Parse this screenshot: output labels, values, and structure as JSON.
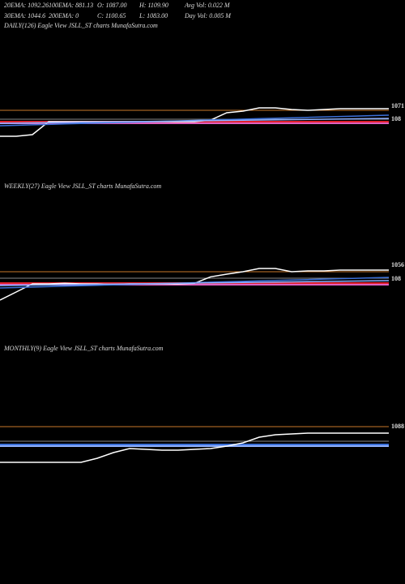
{
  "header": {
    "row1": [
      "20EMA: 1092.26",
      "100EMA: 881.13",
      "O: 1087.00",
      "H: 1109.90",
      "Avg Vol: 0.022  M"
    ],
    "row2": [
      "30EMA: 1044.6",
      "200EMA: 0",
      "C: 1100.65",
      "L: 1083.00",
      "Day Vol: 0.005  M"
    ]
  },
  "chart_data": [
    {
      "type": "line",
      "title": "DAILY(126) Eagle   View  JSLL_ST charts MunafaSutra.com",
      "ylim": [
        970,
        1120
      ],
      "categories": [
        null,
        null,
        null,
        null,
        null,
        null,
        null,
        null,
        null,
        null,
        null,
        null,
        null,
        null,
        null,
        null,
        null,
        null,
        null,
        null,
        null,
        null,
        null,
        null,
        null
      ],
      "series": [
        {
          "color": "#ffffff",
          "values": [
            1018,
            1018,
            1021,
            1045,
            1045,
            1045,
            1045,
            1045,
            1045,
            1045,
            1045,
            1045,
            1045,
            1048,
            1061.5,
            1064.5,
            1070.5,
            1070.5,
            1067.5,
            1066,
            1067.5,
            1069,
            1069,
            1069,
            1069
          ]
        },
        {
          "color": "#3a6fd8",
          "values": [
            1037.5,
            1038.3,
            1039.1,
            1039.9,
            1040.8,
            1041.6,
            1042.4,
            1043.2,
            1044,
            1044.8,
            1045.6,
            1046.4,
            1047.3,
            1048.1,
            1048.9,
            1049.7,
            1050.5,
            1051.3,
            1052.1,
            1052.9,
            1053.8,
            1054.6,
            1055.4,
            1056.2,
            1057
          ]
        },
        {
          "color": "#8fb0ff",
          "values": [
            1042,
            1042.4,
            1042.8,
            1043.1,
            1043.5,
            1043.9,
            1044.3,
            1044.6,
            1045,
            1045.4,
            1045.8,
            1046.1,
            1046.5,
            1046.9,
            1047.3,
            1047.6,
            1048,
            1048.4,
            1048.8,
            1049.1,
            1049.5,
            1049.9,
            1050.3,
            1050.6,
            1051
          ]
        }
      ],
      "hlines": [
        {
          "color": "#c8782a",
          "value": 1066
        },
        {
          "color": "#888888",
          "value": 1049.5
        },
        {
          "color": "#e0202a",
          "value": 1045
        },
        {
          "color": "#e060c0",
          "value": 1042
        }
      ],
      "annotations": [
        "1071",
        "108"
      ]
    },
    {
      "type": "line",
      "title": "WEEKLY(27) Eagle   View  JSLL_ST charts MunafaSutra.com",
      "ylim": [
        970,
        1120
      ],
      "categories": [
        null,
        null,
        null,
        null,
        null,
        null,
        null,
        null,
        null,
        null,
        null,
        null,
        null,
        null,
        null,
        null,
        null,
        null,
        null,
        null,
        null,
        null,
        null,
        null,
        null
      ],
      "series": [
        {
          "color": "#ffffff",
          "values": [
            1015,
            1030,
            1045,
            1045,
            1046,
            1045,
            1045,
            1044,
            1045,
            1045,
            1045,
            1045,
            1046,
            1058,
            1063,
            1067.5,
            1073.5,
            1073.5,
            1067.5,
            1069,
            1069,
            1070.5,
            1070.5,
            1070.5,
            1070.5
          ]
        },
        {
          "color": "#3a6fd8",
          "values": [
            1037.5,
            1038.3,
            1039.1,
            1039.9,
            1040.8,
            1041.6,
            1042.4,
            1043.2,
            1044,
            1044.8,
            1045.6,
            1046.4,
            1047.3,
            1048.1,
            1048.9,
            1049.7,
            1050.5,
            1051.3,
            1052.1,
            1052.9,
            1053.8,
            1054.6,
            1055.4,
            1056.2,
            1057
          ]
        },
        {
          "color": "#8fb0ff",
          "values": [
            1042,
            1042.4,
            1042.8,
            1043.1,
            1043.5,
            1043.9,
            1044.3,
            1044.6,
            1045,
            1045.4,
            1045.8,
            1046.1,
            1046.5,
            1046.9,
            1047.3,
            1047.6,
            1048,
            1048.4,
            1048.8,
            1049.1,
            1049.5,
            1049.9,
            1050.3,
            1050.6,
            1051
          ]
        }
      ],
      "hlines": [
        {
          "color": "#c8782a",
          "value": 1067.5
        },
        {
          "color": "#888888",
          "value": 1055.5
        },
        {
          "color": "#e0202a",
          "value": 1046.5
        },
        {
          "color": "#e060c0",
          "value": 1043.5
        }
      ],
      "annotations": [
        "1056",
        "108"
      ]
    },
    {
      "type": "line",
      "title": "MONTHLY(9) Eagle   View  JSLL_ST charts MunafaSutra.com",
      "ylim": [
        970,
        1120
      ],
      "categories": [
        null,
        null,
        null,
        null,
        null,
        null,
        null,
        null,
        null,
        null,
        null,
        null,
        null,
        null,
        null,
        null,
        null,
        null,
        null,
        null,
        null,
        null,
        null,
        null,
        null
      ],
      "series": [
        {
          "color": "#ffffff",
          "values": [
            1015,
            1015,
            1015,
            1015,
            1015,
            1015,
            1022.5,
            1033,
            1040.5,
            1039,
            1037.5,
            1037.5,
            1039,
            1040.5,
            1045,
            1051,
            1061.5,
            1066,
            1067.5,
            1069,
            1069,
            1069,
            1069,
            1069,
            1069
          ]
        }
      ],
      "hlines": [
        {
          "color": "#c8782a",
          "value": 1081
        },
        {
          "color": "#888888",
          "value": 1054
        },
        {
          "color": "#3a6fd8",
          "value": 1048
        },
        {
          "color": "#8fb0ff",
          "value": 1045
        }
      ],
      "annotations": [
        "1088"
      ]
    }
  ]
}
